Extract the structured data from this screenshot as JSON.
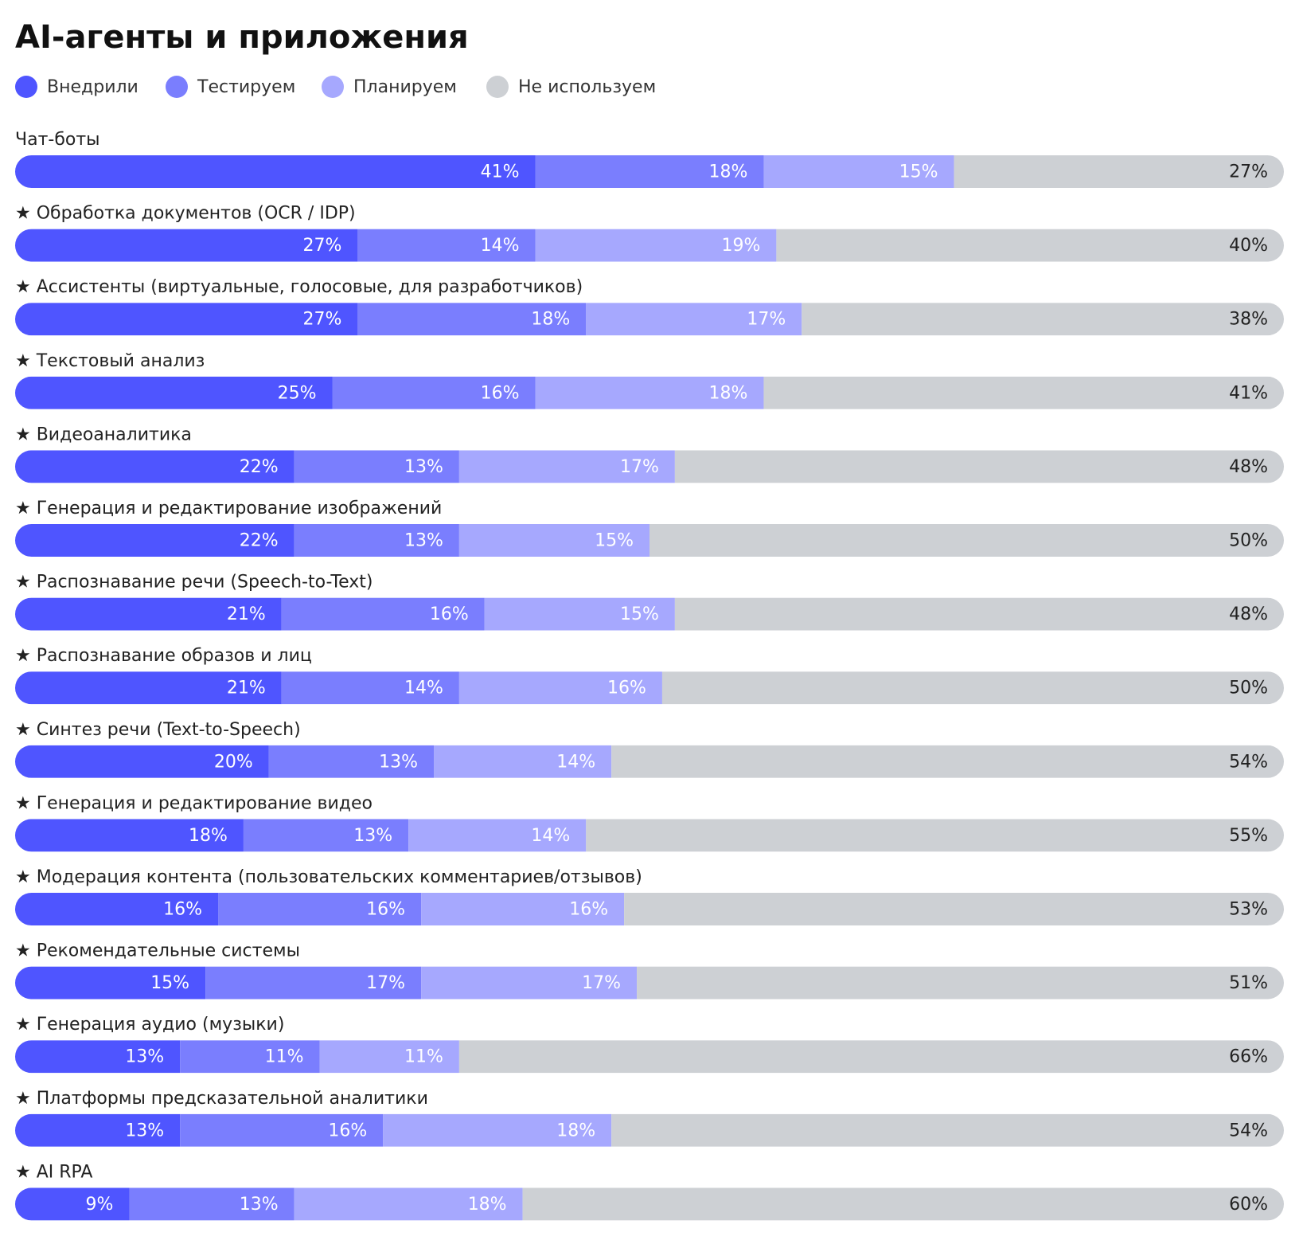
{
  "chart_data": {
    "type": "stacked-bar-horizontal",
    "title": "AI-агенты и приложения",
    "categories": [
      "Чат-боты",
      "★ Обработка документов (OCR / IDP)",
      "★ Ассистенты (виртуальные, голосовые, для разработчиков)",
      "★ Текстовый анализ",
      "★ Видеоаналитика",
      "★ Генерация и редактирование изображений",
      "★ Распознавание речи (Speech-to-Text)",
      "★ Распознавание образов и лиц",
      "★ Синтез речи (Text-to-Speech)",
      "★ Генерация и редактирование видео",
      "★ Модерация контента (пользовательских комментариев/отзывов)",
      "★ Рекомендательные системы",
      "★ Генерация аудио (музыки)",
      "★ Платформы предсказательной аналитики",
      "★ AI RPA"
    ],
    "xlim": [
      0,
      100
    ],
    "series": [
      {
        "name": "Внедрили",
        "color": "#4f55ff",
        "label_color": "#ffffff",
        "values": [
          41,
          27,
          27,
          25,
          22,
          22,
          21,
          21,
          20,
          18,
          16,
          15,
          13,
          13,
          9
        ],
        "value_labels": [
          "41%",
          "27%",
          "27%",
          "25%",
          "22%",
          "22%",
          "21%",
          "21%",
          "20%",
          "18%",
          "16%",
          "15%",
          "13%",
          "13%",
          "9%"
        ]
      },
      {
        "name": "Тестируем",
        "color": "#7a7efe",
        "label_color": "#ffffff",
        "values": [
          18,
          14,
          18,
          16,
          13,
          13,
          16,
          14,
          13,
          13,
          16,
          17,
          11,
          16,
          13
        ],
        "value_labels": [
          "18%",
          "14%",
          "18%",
          "16%",
          "13%",
          "13%",
          "16%",
          "14%",
          "13%",
          "13%",
          "16%",
          "17%",
          "11%",
          "16%",
          "13%"
        ]
      },
      {
        "name": "Планируем",
        "color": "#a6a8fe",
        "label_color": "#ffffff",
        "values": [
          15,
          19,
          17,
          18,
          17,
          15,
          15,
          16,
          14,
          14,
          16,
          17,
          11,
          18,
          18
        ],
        "value_labels": [
          "15%",
          "19%",
          "17%",
          "18%",
          "17%",
          "15%",
          "15%",
          "16%",
          "14%",
          "14%",
          "16%",
          "17%",
          "11%",
          "18%",
          "18%"
        ]
      },
      {
        "name": "Не используем",
        "color": "#cdd0d4",
        "label_color": "#222222",
        "values": [
          27,
          40,
          38,
          41,
          48,
          50,
          48,
          50,
          54,
          55,
          53,
          51,
          66,
          54,
          60
        ],
        "value_labels": [
          "27%",
          "40%",
          "38%",
          "41%",
          "48%",
          "50%",
          "48%",
          "50%",
          "54%",
          "55%",
          "53%",
          "51%",
          "66%",
          "54%",
          "60%"
        ]
      }
    ]
  }
}
